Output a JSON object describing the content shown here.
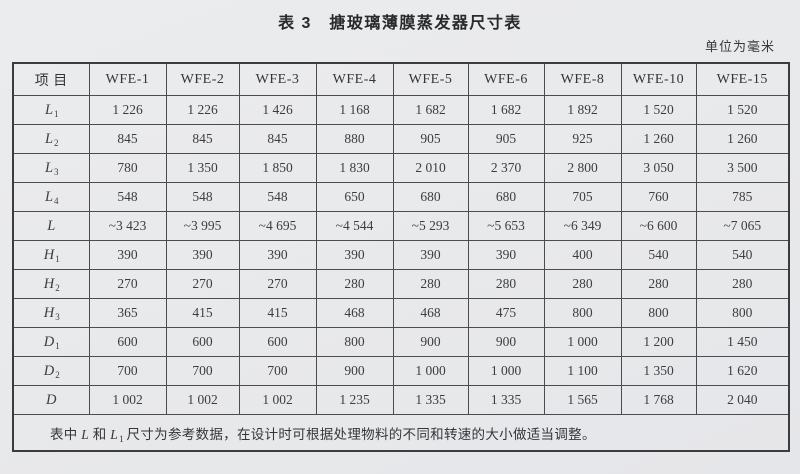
{
  "page": {
    "title": "表 3　搪玻璃薄膜蒸发器尺寸表",
    "unit_label": "单位为毫米"
  },
  "table": {
    "columns": [
      "项 目",
      "WFE-1",
      "WFE-2",
      "WFE-3",
      "WFE-4",
      "WFE-5",
      "WFE-6",
      "WFE-8",
      "WFE-10",
      "WFE-15"
    ],
    "rows": [
      {
        "label": "L",
        "sub": "1",
        "values": [
          "1 226",
          "1 226",
          "1 426",
          "1 168",
          "1 682",
          "1 682",
          "1 892",
          "1 520",
          "1 520"
        ]
      },
      {
        "label": "L",
        "sub": "2",
        "values": [
          "845",
          "845",
          "845",
          "880",
          "905",
          "905",
          "925",
          "1 260",
          "1 260"
        ]
      },
      {
        "label": "L",
        "sub": "3",
        "values": [
          "780",
          "1 350",
          "1 850",
          "1 830",
          "2 010",
          "2 370",
          "2 800",
          "3 050",
          "3 500"
        ]
      },
      {
        "label": "L",
        "sub": "4",
        "values": [
          "548",
          "548",
          "548",
          "650",
          "680",
          "680",
          "705",
          "760",
          "785"
        ]
      },
      {
        "label": "L",
        "sub": "",
        "values": [
          "~3 423",
          "~3 995",
          "~4 695",
          "~4 544",
          "~5 293",
          "~5 653",
          "~6 349",
          "~6 600",
          "~7 065"
        ]
      },
      {
        "label": "H",
        "sub": "1",
        "values": [
          "390",
          "390",
          "390",
          "390",
          "390",
          "390",
          "400",
          "540",
          "540"
        ]
      },
      {
        "label": "H",
        "sub": "2",
        "values": [
          "270",
          "270",
          "270",
          "280",
          "280",
          "280",
          "280",
          "280",
          "280"
        ]
      },
      {
        "label": "H",
        "sub": "3",
        "values": [
          "365",
          "415",
          "415",
          "468",
          "468",
          "475",
          "800",
          "800",
          "800"
        ]
      },
      {
        "label": "D",
        "sub": "1",
        "values": [
          "600",
          "600",
          "600",
          "800",
          "900",
          "900",
          "1 000",
          "1 200",
          "1 450"
        ]
      },
      {
        "label": "D",
        "sub": "2",
        "values": [
          "700",
          "700",
          "700",
          "900",
          "1 000",
          "1 000",
          "1 100",
          "1 350",
          "1 620"
        ]
      },
      {
        "label": "D",
        "sub": "",
        "values": [
          "1 002",
          "1 002",
          "1 002",
          "1 235",
          "1 335",
          "1 335",
          "1 565",
          "1 768",
          "2 040"
        ]
      }
    ],
    "footnote": {
      "prefix": "表中 ",
      "var1": "L",
      "conj": " 和 ",
      "var2": "L",
      "var2_sub": "1",
      "suffix": " 尺寸为参考数据，在设计时可根据处理物料的不同和转速的大小做适当调整。"
    }
  },
  "colors": {
    "page_bg": "#e9eaec",
    "border": "#3b3c40",
    "text": "#3c3d40"
  }
}
